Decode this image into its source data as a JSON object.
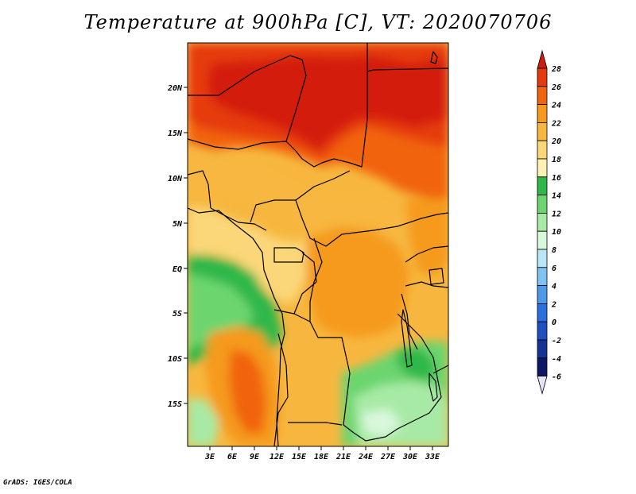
{
  "title": "Temperature at 900hPa [C], VT: 2020070706",
  "credit": "GrADS: IGES/COLA",
  "map": {
    "variable": "Temperature",
    "level": "900hPa",
    "units": "C",
    "valid_time": "2020070706",
    "lat_ticks": [
      "20N",
      "15N",
      "10N",
      "5N",
      "EQ",
      "5S",
      "10S",
      "15S"
    ],
    "lon_ticks": [
      "3E",
      "6E",
      "9E",
      "12E",
      "15E",
      "18E",
      "21E",
      "24E",
      "27E",
      "30E",
      "33E"
    ]
  },
  "colorbar": {
    "levels": [
      "28",
      "26",
      "24",
      "22",
      "20",
      "18",
      "16",
      "14",
      "12",
      "10",
      "8",
      "6",
      "4",
      "2",
      "0",
      "-2",
      "-4",
      "-6"
    ],
    "colors": [
      "#cc1e0e",
      "#e63a0e",
      "#f1640f",
      "#f59a1d",
      "#f7b73f",
      "#fbd779",
      "#fdf2b2",
      "#2eb84a",
      "#6cd56e",
      "#a7eaa5",
      "#d8f8dc",
      "#b8e5f8",
      "#80c3f3",
      "#4c99ea",
      "#2a6fde",
      "#1e50c2",
      "#153395",
      "#0b1665",
      "#e4e4f7"
    ]
  }
}
